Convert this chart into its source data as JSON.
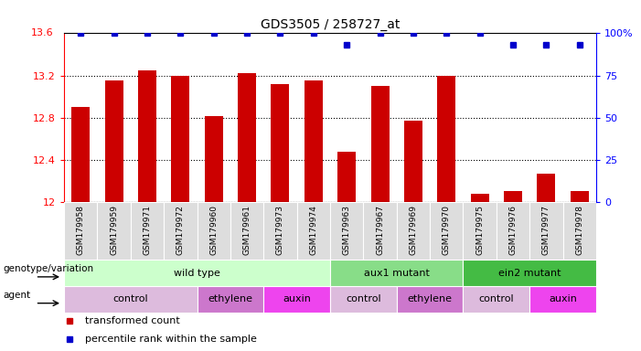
{
  "title": "GDS3505 / 258727_at",
  "samples": [
    "GSM179958",
    "GSM179959",
    "GSM179971",
    "GSM179972",
    "GSM179960",
    "GSM179961",
    "GSM179973",
    "GSM179974",
    "GSM179963",
    "GSM179967",
    "GSM179969",
    "GSM179970",
    "GSM179975",
    "GSM179976",
    "GSM179977",
    "GSM179978"
  ],
  "bar_values": [
    12.9,
    13.15,
    13.25,
    13.2,
    12.81,
    13.22,
    13.12,
    13.15,
    12.48,
    13.1,
    12.77,
    13.2,
    12.08,
    12.1,
    12.27,
    12.1
  ],
  "percentile_values": [
    100,
    100,
    100,
    100,
    100,
    100,
    100,
    100,
    93,
    100,
    100,
    100,
    100,
    93,
    93,
    93
  ],
  "bar_color": "#cc0000",
  "dot_color": "#0000cc",
  "ylim_left": [
    12,
    13.6
  ],
  "ylim_right": [
    0,
    100
  ],
  "yticks_left": [
    12,
    12.4,
    12.8,
    13.2
  ],
  "ytick_labels_left": [
    "12",
    "12.4",
    "12.8",
    "13.2"
  ],
  "yticks_right": [
    0,
    25,
    50,
    75,
    100
  ],
  "ytick_labels_right": [
    "0",
    "25",
    "50",
    "75",
    "100%"
  ],
  "genotype_groups": [
    {
      "label": "wild type",
      "start": 0,
      "end": 8,
      "color": "#ccffcc"
    },
    {
      "label": "aux1 mutant",
      "start": 8,
      "end": 12,
      "color": "#88dd88"
    },
    {
      "label": "ein2 mutant",
      "start": 12,
      "end": 16,
      "color": "#44bb44"
    }
  ],
  "agent_groups": [
    {
      "label": "control",
      "start": 0,
      "end": 4,
      "color": "#ddbbdd"
    },
    {
      "label": "ethylene",
      "start": 4,
      "end": 6,
      "color": "#cc77cc"
    },
    {
      "label": "auxin",
      "start": 6,
      "end": 8,
      "color": "#ee44ee"
    },
    {
      "label": "control",
      "start": 8,
      "end": 10,
      "color": "#ddbbdd"
    },
    {
      "label": "ethylene",
      "start": 10,
      "end": 12,
      "color": "#cc77cc"
    },
    {
      "label": "control",
      "start": 12,
      "end": 14,
      "color": "#ddbbdd"
    },
    {
      "label": "auxin",
      "start": 14,
      "end": 16,
      "color": "#ee44ee"
    }
  ],
  "genotype_label": "genotype/variation",
  "agent_label": "agent",
  "legend_bar_label": "transformed count",
  "legend_dot_label": "percentile rank within the sample"
}
